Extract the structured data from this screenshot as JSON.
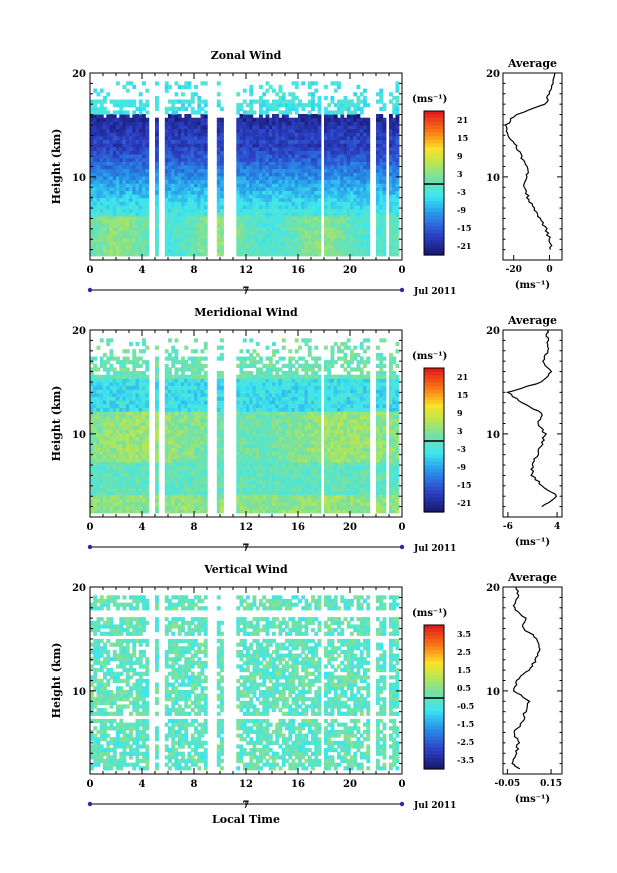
{
  "chart_data": [
    {
      "type": "heatmap",
      "title": "Zonal Wind",
      "ylabel": "Height (km)",
      "xlabel": "",
      "x_ticks": [
        "0",
        "4",
        "8",
        "12",
        "16",
        "20",
        "0"
      ],
      "y_ticks": [
        "10",
        "20"
      ],
      "xlim": [
        0,
        24
      ],
      "ylim": [
        2,
        20
      ],
      "date_label": "7",
      "month_label": "Jul 2011",
      "colorbar": {
        "unit": "(ms⁻¹)",
        "ticks": [
          "21",
          "15",
          "9",
          "3",
          "-3",
          "-9",
          "-15",
          "-21"
        ],
        "range": [
          -24,
          24
        ]
      },
      "average_profile": {
        "title": "Average",
        "unit": "(ms⁻¹)",
        "x_ticks": [
          "-20",
          "0"
        ],
        "xlim": [
          -26,
          7
        ],
        "heights": [
          3,
          4,
          5,
          6,
          7,
          8,
          9,
          10,
          11,
          12,
          13,
          14,
          15,
          16,
          17,
          18,
          19,
          20
        ],
        "values": [
          1,
          0,
          -2,
          -5,
          -9,
          -12,
          -14,
          -13,
          -12,
          -16,
          -19,
          -23,
          -24,
          -19,
          -2,
          0,
          2,
          3
        ]
      }
    },
    {
      "type": "heatmap",
      "title": "Meridional Wind",
      "ylabel": "Height (km)",
      "xlabel": "",
      "x_ticks": [
        "0",
        "4",
        "8",
        "12",
        "16",
        "20",
        "0"
      ],
      "y_ticks": [
        "10",
        "20"
      ],
      "xlim": [
        0,
        24
      ],
      "ylim": [
        2,
        20
      ],
      "date_label": "7",
      "month_label": "Jul 2011",
      "colorbar": {
        "unit": "(ms⁻¹)",
        "ticks": [
          "21",
          "15",
          "9",
          "3",
          "-3",
          "-9",
          "-15",
          "-21"
        ],
        "range": [
          -24,
          24
        ]
      },
      "average_profile": {
        "title": "Average",
        "unit": "(ms⁻¹)",
        "x_ticks": [
          "-6",
          "4"
        ],
        "xlim": [
          -7,
          5
        ],
        "heights": [
          3,
          4,
          5,
          6,
          7,
          8,
          9,
          10,
          11,
          12,
          13,
          14,
          15,
          16,
          17,
          18,
          19,
          20
        ],
        "values": [
          1,
          4,
          1,
          -1,
          -1,
          0,
          1,
          1.5,
          0,
          1,
          -3,
          -6,
          1,
          3,
          1,
          2,
          2,
          2
        ]
      }
    },
    {
      "type": "heatmap",
      "title": "Vertical Wind",
      "ylabel": "Height (km)",
      "xlabel": "Local Time",
      "x_ticks": [
        "0",
        "4",
        "8",
        "12",
        "16",
        "20",
        "0"
      ],
      "y_ticks": [
        "10",
        "20"
      ],
      "xlim": [
        0,
        24
      ],
      "ylim": [
        2,
        20
      ],
      "date_label": "7",
      "month_label": "Jul 2011",
      "colorbar": {
        "unit": "(ms⁻¹)",
        "ticks": [
          "3.5",
          "2.5",
          "1.5",
          "0.5",
          "-0.5",
          "-1.5",
          "-2.5",
          "-3.5"
        ],
        "range": [
          -4,
          4
        ]
      },
      "average_profile": {
        "title": "Average",
        "unit": "(ms⁻¹)",
        "x_ticks": [
          "-0.05",
          "0.15"
        ],
        "xlim": [
          -0.07,
          0.2
        ],
        "heights": [
          2.5,
          3,
          4,
          5,
          6,
          7,
          8,
          9,
          10,
          11,
          12,
          13,
          14,
          15,
          16,
          17,
          18,
          19,
          20
        ],
        "values": [
          0.0,
          -0.03,
          -0.01,
          0.0,
          -0.02,
          0.02,
          0.03,
          0.05,
          -0.02,
          -0.01,
          0.05,
          0.08,
          0.1,
          0.09,
          0.02,
          0.03,
          -0.02,
          0.0,
          -0.01
        ]
      }
    }
  ]
}
